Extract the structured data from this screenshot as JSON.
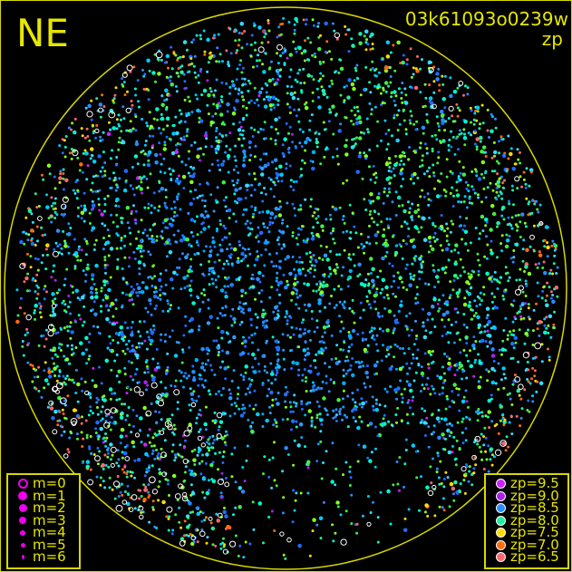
{
  "header": {
    "orientation": "NE",
    "image_id": "03k61093o0239w",
    "mode": "zp"
  },
  "colors": {
    "frame": "#d8d800",
    "text": "#e6e600",
    "horizon_circle": "#d8d800",
    "unmatched": "#ffffff"
  },
  "chart_data": {
    "type": "scatter",
    "title": "",
    "xlabel": "",
    "ylabel": "",
    "grid": false,
    "magnitude_legend": {
      "placement": "bottom-left",
      "entries": [
        {
          "label": "m=0",
          "size": 0,
          "filled": false
        },
        {
          "label": "m=1",
          "size": 1,
          "filled": true
        },
        {
          "label": "m=2",
          "size": 2,
          "filled": true
        },
        {
          "label": "m=3",
          "size": 3,
          "filled": true
        },
        {
          "label": "m=4",
          "size": 4,
          "filled": true
        },
        {
          "label": "m=5",
          "size": 5,
          "filled": true
        },
        {
          "label": "m=6",
          "size": 6,
          "filled": true
        }
      ],
      "symbol_color": "#ee00ee"
    },
    "zp_legend": {
      "placement": "bottom-right",
      "entries": [
        {
          "label": "zp=9.5",
          "zp": 9.5,
          "color": "#cc22ff"
        },
        {
          "label": "zp=9.0",
          "zp": 9.0,
          "color": "#aa22ee"
        },
        {
          "label": "zp=8.5",
          "zp": 8.5,
          "color": "#2a8cff"
        },
        {
          "label": "zp=8.0",
          "zp": 8.0,
          "color": "#22eea0"
        },
        {
          "label": "zp=7.5",
          "zp": 7.5,
          "color": "#ffdd00"
        },
        {
          "label": "zp=7.0",
          "zp": 7.0,
          "color": "#ff6a10"
        },
        {
          "label": "zp=6.5",
          "zp": 6.5,
          "color": "#ff6670"
        }
      ]
    }
  }
}
